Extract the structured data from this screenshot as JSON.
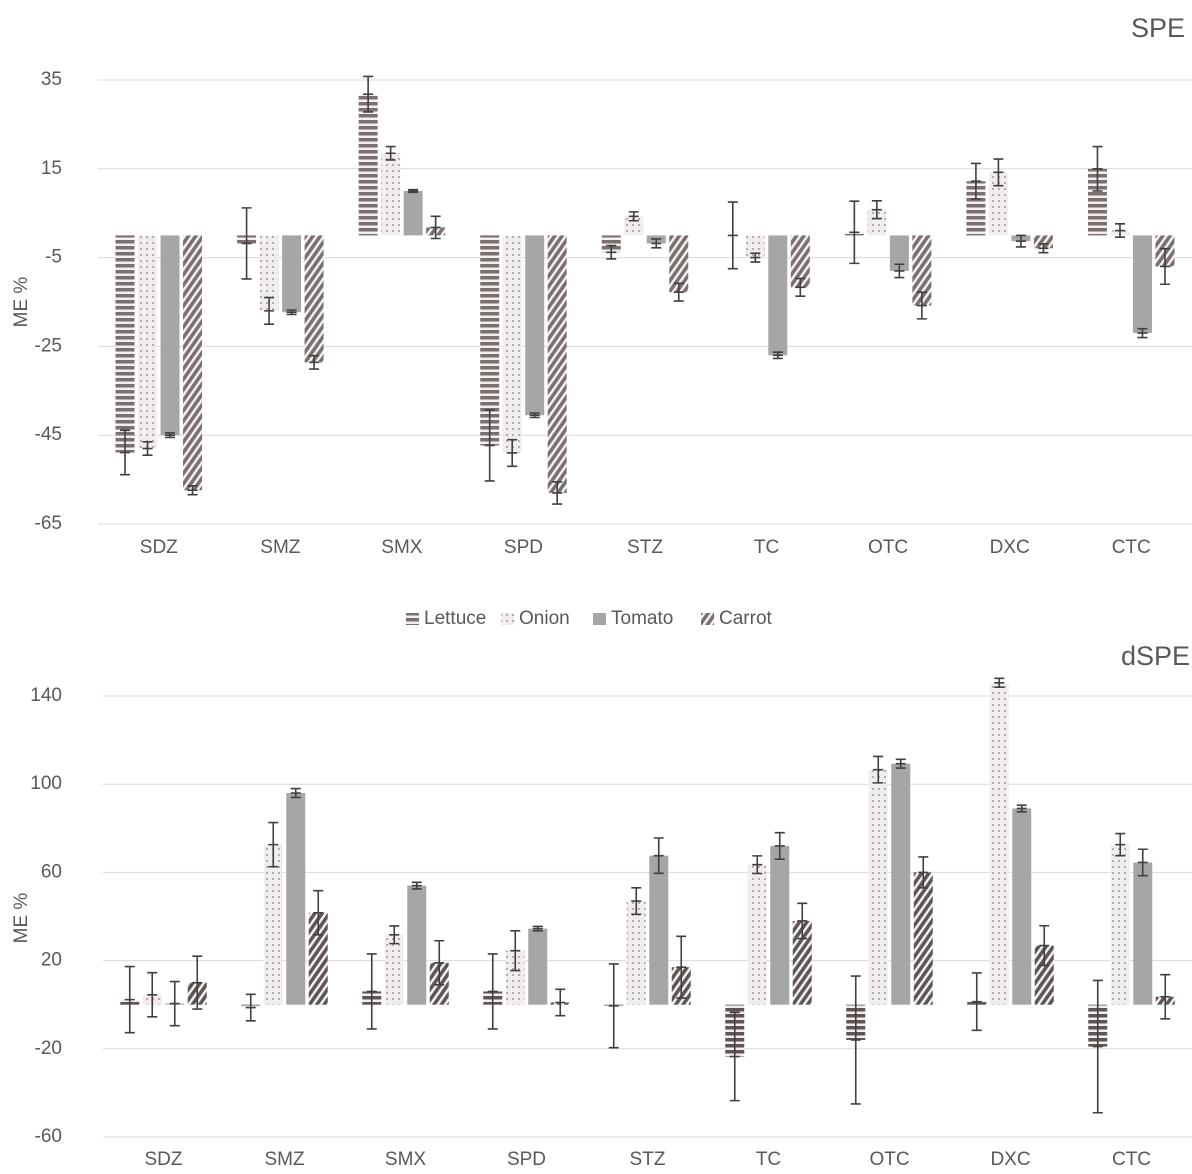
{
  "chart_data": [
    {
      "type": "bar",
      "title": "SPE",
      "y_label": "ME %",
      "legend": "bottom",
      "categories": [
        "SDZ",
        "SMZ",
        "SMX",
        "SPD",
        "STZ",
        "TC",
        "OTC",
        "DXC",
        "CTC"
      ],
      "ylim": [
        -65,
        35
      ],
      "yticks": [
        35,
        15,
        -5,
        -25,
        -45,
        -65
      ],
      "grid": true,
      "series": [
        {
          "name": "Lettuce",
          "color": "#7b7070",
          "pattern": "horizontal",
          "values": [
            -48.9,
            -1.8,
            31.8,
            -47.3,
            -3.8,
            0,
            0.7,
            12.2,
            15
          ],
          "errors": [
            5,
            8,
            4,
            8,
            1.5,
            7.5,
            7,
            4,
            5
          ]
        },
        {
          "name": "Onion",
          "color": "#bdb5b5",
          "pattern": "dots",
          "values": [
            -48,
            -17,
            18.5,
            -49,
            4.3,
            -5,
            5.8,
            14.2,
            1.1
          ],
          "errors": [
            1.5,
            3,
            1.5,
            3,
            1,
            1,
            2,
            3,
            1.5
          ]
        },
        {
          "name": "Tomato",
          "color": "#a6a6a6",
          "pattern": "solid",
          "values": [
            -45,
            -17.3,
            10,
            -40.5,
            -1.8,
            -27,
            -8,
            -1.3,
            -22
          ],
          "errors": [
            0.5,
            0.5,
            0.3,
            0.5,
            1,
            0.7,
            1.5,
            1.3,
            1
          ]
        },
        {
          "name": "Carrot",
          "color": "#7b7070",
          "pattern": "diagonal",
          "values": [
            -57.4,
            -28.6,
            1.8,
            -58,
            -12.8,
            -11.7,
            -15.8,
            -2.9,
            -7
          ],
          "errors": [
            1,
            1.5,
            2.5,
            2.5,
            2,
            2,
            3,
            1,
            4
          ]
        }
      ]
    },
    {
      "type": "bar",
      "title": "dSPE",
      "y_label": "ME %",
      "categories": [
        "SDZ",
        "SMZ",
        "SMX",
        "SPD",
        "STZ",
        "TC",
        "OTC",
        "DXC",
        "CTC"
      ],
      "ylim": [
        -60,
        140
      ],
      "yticks": [
        140,
        100,
        60,
        20,
        -20,
        -60
      ],
      "grid": true,
      "series": [
        {
          "name": "Lettuce",
          "color": "#5f5555",
          "pattern": "horizontal",
          "values": [
            2.3,
            -1.3,
            6,
            6,
            -0.5,
            -23.5,
            -16,
            1.4,
            -19
          ],
          "errors": [
            15,
            6,
            17,
            17,
            19,
            20,
            29,
            13,
            30
          ]
        },
        {
          "name": "Onion",
          "color": "#bdb5b5",
          "pattern": "dots",
          "values": [
            4.5,
            72.6,
            31.7,
            24.5,
            47,
            63.5,
            106.6,
            146,
            72.6
          ],
          "errors": [
            10,
            10,
            4,
            9,
            6,
            4,
            6,
            2,
            5
          ]
        },
        {
          "name": "Tomato",
          "color": "#a6a6a6",
          "pattern": "solid",
          "values": [
            0.5,
            96,
            54,
            34.5,
            67.6,
            72,
            109.3,
            89,
            64.5
          ],
          "errors": [
            10,
            2,
            1.5,
            1,
            8,
            6,
            2,
            1.5,
            6
          ]
        },
        {
          "name": "Carrot",
          "color": "#5f5555",
          "pattern": "diagonal",
          "values": [
            10,
            41.7,
            19,
            1,
            17,
            38,
            60,
            26.8,
            3.6
          ],
          "errors": [
            12,
            10,
            10,
            6,
            14,
            8,
            7,
            9,
            10
          ]
        }
      ]
    }
  ]
}
